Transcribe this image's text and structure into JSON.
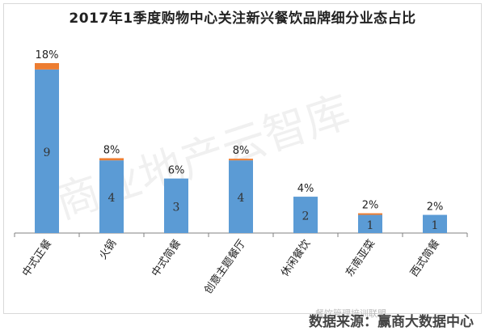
{
  "chart_data": {
    "type": "bar",
    "title": "2017年1季度购物中心关注新兴餐饮品牌细分业态占比",
    "categories": [
      "中式正餐",
      "火锅",
      "中式简餐",
      "创意主题餐厅",
      "休闲餐饮",
      "东南亚菜",
      "西式简餐"
    ],
    "values": [
      9,
      4,
      3,
      4,
      2,
      1,
      1
    ],
    "percent_labels": [
      "18%",
      "8%",
      "6%",
      "8%",
      "4%",
      "2%",
      "2%"
    ],
    "accent_values": [
      0.35,
      0.12,
      0,
      0.08,
      0,
      0.05,
      0
    ],
    "ylim": [
      0,
      9.35
    ],
    "grid": false,
    "legend": "none",
    "colors": {
      "bar": "#5b9bd5",
      "accent": "#ed7d31",
      "axis": "#808080",
      "text": "#222222"
    }
  },
  "watermark": "商业地产云智库",
  "wechat": "餐饮管理培训联盟",
  "footer": "数据来源：赢商大数据中心"
}
